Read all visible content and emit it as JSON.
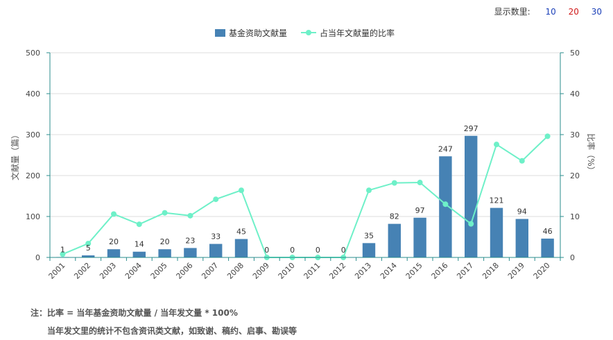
{
  "display_count": {
    "label": "显示数里:",
    "options": [
      "10",
      "20",
      "30"
    ]
  },
  "chart_data": {
    "type": "bar",
    "categories": [
      "2001",
      "2002",
      "2003",
      "2004",
      "2005",
      "2006",
      "2007",
      "2008",
      "2009",
      "2010",
      "2011",
      "2012",
      "2013",
      "2014",
      "2015",
      "2016",
      "2017",
      "2018",
      "2019",
      "2020"
    ],
    "series": [
      {
        "name": "基金资助文献量",
        "type": "bar",
        "axis": "left",
        "values": [
          1,
          5,
          20,
          14,
          20,
          23,
          33,
          45,
          0,
          0,
          0,
          0,
          35,
          82,
          97,
          247,
          297,
          121,
          94,
          46
        ]
      },
      {
        "name": "占当年文献量的比率",
        "type": "line",
        "axis": "right",
        "values": [
          0.8,
          3.4,
          10.6,
          8.1,
          10.9,
          10.2,
          14.2,
          16.4,
          0,
          0,
          0,
          0,
          16.4,
          18.2,
          18.3,
          13.0,
          8.2,
          27.6,
          23.6,
          29.6
        ]
      }
    ],
    "ylabel": "文献量（篇）",
    "y2label": "比率（%）",
    "ylim": [
      0,
      500
    ],
    "y2lim": [
      0,
      50
    ],
    "yticks": [
      0,
      100,
      200,
      300,
      400,
      500
    ],
    "y2ticks": [
      0,
      10,
      20,
      30,
      40,
      50
    ],
    "legend": "top-center",
    "grid": true,
    "colors": {
      "bar": "#4682b4",
      "line": "#6ef0c8",
      "axis": "#2a8c8c"
    }
  },
  "notes": {
    "line1": "注：比率 = 当年基金资助文献量 / 当年发文量 * 100%",
    "line2": "当年发文里的统计不包含资讯类文献，如致谢、稿约、启事、勘误等"
  }
}
